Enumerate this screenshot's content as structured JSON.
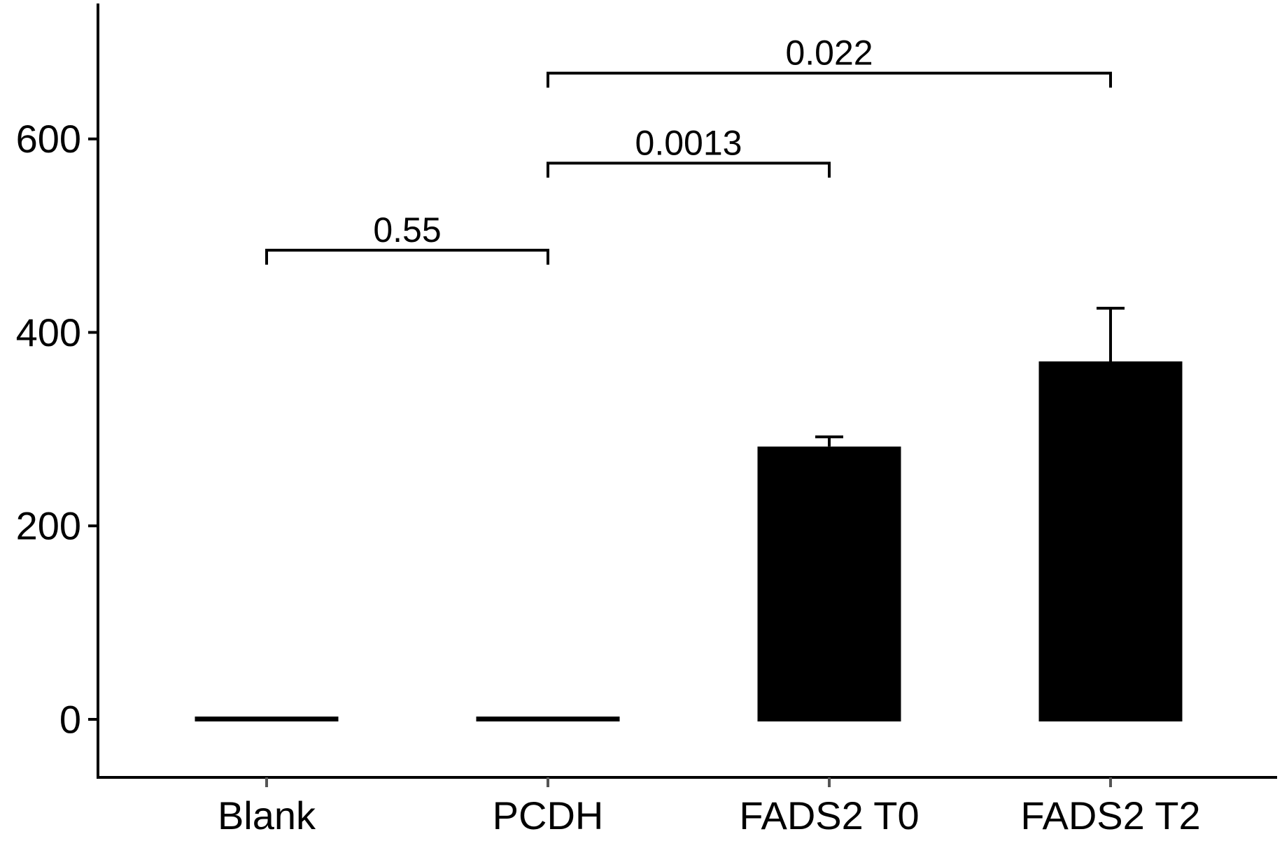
{
  "chart_data": {
    "type": "bar",
    "title": "",
    "xlabel": "",
    "ylabel": "",
    "ylim": [
      -60,
      740
    ],
    "yticks": [
      0,
      200,
      400,
      600
    ],
    "ytick_labels": [
      "0",
      "200",
      "400",
      "600"
    ],
    "categories": [
      "Blank",
      "PCDH",
      "FADS2 T0",
      "FADS2 T2"
    ],
    "values": [
      1,
      1,
      282,
      370
    ],
    "errors": [
      1,
      1,
      10,
      55
    ],
    "bar_color": "#000000",
    "comparisons": [
      {
        "from": 0,
        "to": 1,
        "label": "0.55",
        "y": 485,
        "tip": 15
      },
      {
        "from": 1,
        "to": 2,
        "label": "0.0013",
        "y": 575,
        "tip": 15
      },
      {
        "from": 1,
        "to": 3,
        "label": "0.022",
        "y": 668,
        "tip": 15
      }
    ],
    "grid": false,
    "legend": "none"
  }
}
